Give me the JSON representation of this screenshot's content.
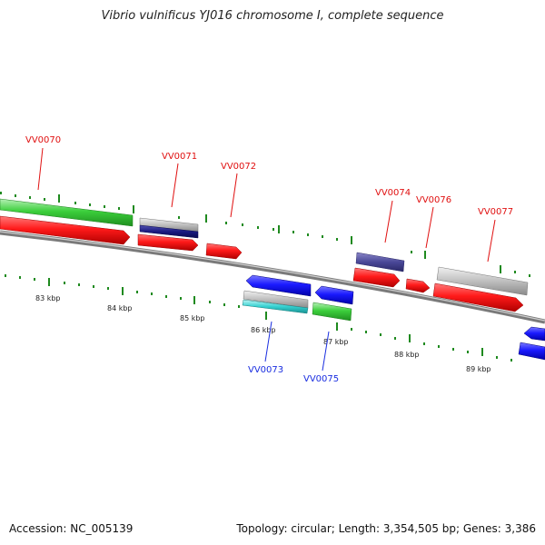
{
  "title": "Vibrio vulnificus YJ016 chromosome I, complete sequence",
  "footer": {
    "accession": "Accession: NC_005139",
    "summary": "Topology: circular; Length: 3,354,505 bp; Genes: 3,386"
  },
  "scale_labels": [
    "83 kbp",
    "84 kbp",
    "85 kbp",
    "86 kbp",
    "87 kbp",
    "88 kbp",
    "89 kbp"
  ],
  "genes": [
    {
      "id": "VV0070",
      "color": "#e01010"
    },
    {
      "id": "VV0071",
      "color": "#e01010"
    },
    {
      "id": "VV0072",
      "color": "#e01010"
    },
    {
      "id": "VV0073",
      "color": "#1a2ee0"
    },
    {
      "id": "VV0074",
      "color": "#e01010"
    },
    {
      "id": "VV0075",
      "color": "#1a2ee0"
    },
    {
      "id": "VV0076",
      "color": "#e01010"
    },
    {
      "id": "VV0077",
      "color": "#e01010"
    }
  ],
  "colors": {
    "forward_cds": "#ff1a1a",
    "reverse_cds": "#1a1aff",
    "forward_gene": "#3ccf3c",
    "reverse_gene": "#3ccf3c",
    "rna": "#bdbdbd",
    "backbone": "#7a7a7a",
    "ticks": "#1f8a1f"
  }
}
